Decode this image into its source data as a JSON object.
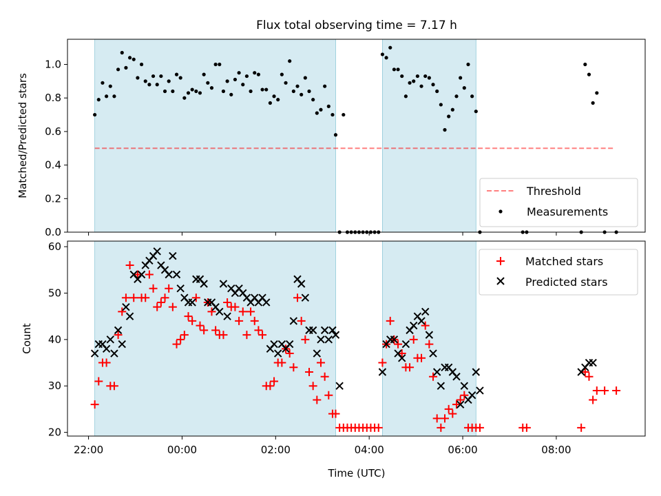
{
  "title": "Flux total observing time = 7.17 h",
  "colors": {
    "shade": "#add8e6",
    "threshold": "#ff0000",
    "matched": "#ff0000",
    "predicted": "#000000",
    "measurement": "#000000"
  },
  "chart_data": [
    {
      "type": "scatter",
      "panel": "top",
      "xlabel": "",
      "ylabel": "Matched/Predicted stars",
      "ylim": [
        0,
        1.15
      ],
      "xlim": [
        21.55,
        9.9
      ],
      "yticks": [
        "0.0",
        "0.2",
        "0.4",
        "0.6",
        "0.8",
        "1.0"
      ],
      "grid": false,
      "legend_position": "lower-right",
      "shaded_intervals": [
        [
          "22:08",
          "03:17"
        ],
        [
          "04:17",
          "06:17"
        ]
      ],
      "threshold": {
        "name": "Threshold",
        "y": 0.5,
        "x_from": "22:08",
        "x_to": "09:15"
      },
      "series": [
        {
          "name": "Measurements",
          "x": [
            "22:08",
            "22:13",
            "22:18",
            "22:23",
            "22:28",
            "22:33",
            "22:38",
            "22:43",
            "22:48",
            "22:53",
            "22:58",
            "23:03",
            "23:08",
            "23:13",
            "23:18",
            "23:23",
            "23:28",
            "23:33",
            "23:38",
            "23:43",
            "23:48",
            "23:53",
            "23:58",
            "00:03",
            "00:08",
            "00:13",
            "00:18",
            "00:23",
            "00:28",
            "00:33",
            "00:38",
            "00:43",
            "00:48",
            "00:53",
            "00:58",
            "01:03",
            "01:08",
            "01:13",
            "01:18",
            "01:23",
            "01:28",
            "01:33",
            "01:38",
            "01:43",
            "01:48",
            "01:53",
            "01:58",
            "02:03",
            "02:08",
            "02:13",
            "02:18",
            "02:23",
            "02:28",
            "02:33",
            "02:38",
            "02:43",
            "02:48",
            "02:53",
            "02:58",
            "03:03",
            "03:08",
            "03:13",
            "03:17",
            "03:22",
            "03:27",
            "03:32",
            "03:37",
            "03:42",
            "03:47",
            "03:52",
            "03:57",
            "04:02",
            "04:07",
            "04:12",
            "04:17",
            "04:22",
            "04:27",
            "04:32",
            "04:37",
            "04:42",
            "04:47",
            "04:52",
            "04:57",
            "05:02",
            "05:07",
            "05:12",
            "05:17",
            "05:22",
            "05:27",
            "05:32",
            "05:37",
            "05:42",
            "05:47",
            "05:52",
            "05:57",
            "06:02",
            "06:07",
            "06:12",
            "06:17",
            "06:22",
            "07:17",
            "07:22",
            "08:32",
            "08:37",
            "08:42",
            "08:47",
            "08:52",
            "09:02",
            "09:17"
          ],
          "values": [
            0.7,
            0.79,
            0.89,
            0.81,
            0.87,
            0.81,
            0.97,
            1.07,
            0.98,
            1.04,
            1.03,
            0.92,
            1.0,
            0.9,
            0.88,
            0.93,
            0.88,
            0.93,
            0.84,
            0.9,
            0.84,
            0.94,
            0.92,
            0.8,
            0.83,
            0.85,
            0.84,
            0.83,
            0.94,
            0.89,
            0.86,
            1.0,
            1.0,
            0.84,
            0.9,
            0.82,
            0.91,
            0.95,
            0.88,
            0.93,
            0.84,
            0.95,
            0.94,
            0.85,
            0.85,
            0.77,
            0.81,
            0.79,
            0.94,
            0.89,
            1.02,
            0.84,
            0.87,
            0.82,
            0.92,
            0.84,
            0.79,
            0.71,
            0.73,
            0.87,
            0.75,
            0.7,
            0.58,
            0.0,
            0.7,
            0.0,
            0.0,
            0.0,
            0.0,
            0.0,
            0.0,
            0.0,
            0.0,
            0.0,
            1.06,
            1.04,
            1.1,
            0.97,
            0.97,
            0.93,
            0.81,
            0.89,
            0.9,
            0.93,
            0.87,
            0.93,
            0.92,
            0.88,
            0.84,
            0.76,
            0.61,
            0.69,
            0.73,
            0.81,
            0.92,
            0.86,
            1.0,
            0.81,
            0.72,
            0.0,
            0.0,
            0.0,
            0.0,
            1.0,
            0.94,
            0.77,
            0.83,
            0.0,
            0.0
          ]
        }
      ]
    },
    {
      "type": "scatter",
      "panel": "bottom",
      "xlabel": "Time (UTC)",
      "ylabel": "Count",
      "ylim": [
        19.2,
        61.2
      ],
      "xlim": [
        21.55,
        9.9
      ],
      "yticks": [
        "20",
        "30",
        "40",
        "50",
        "60"
      ],
      "xticks": [
        "22:00",
        "00:00",
        "02:00",
        "04:00",
        "06:00",
        "08:00"
      ],
      "grid": false,
      "legend_position": "upper-right",
      "shaded_intervals": [
        [
          "22:08",
          "03:17"
        ],
        [
          "04:17",
          "06:17"
        ]
      ],
      "series": [
        {
          "name": "Matched stars",
          "x": [
            "22:08",
            "22:13",
            "22:18",
            "22:23",
            "22:28",
            "22:33",
            "22:38",
            "22:43",
            "22:48",
            "22:53",
            "22:58",
            "23:03",
            "23:08",
            "23:13",
            "23:18",
            "23:23",
            "23:28",
            "23:33",
            "23:38",
            "23:43",
            "23:48",
            "23:53",
            "23:58",
            "00:03",
            "00:08",
            "00:13",
            "00:18",
            "00:23",
            "00:28",
            "00:33",
            "00:38",
            "00:43",
            "00:48",
            "00:53",
            "00:58",
            "01:03",
            "01:08",
            "01:13",
            "01:18",
            "01:23",
            "01:28",
            "01:33",
            "01:38",
            "01:43",
            "01:48",
            "01:53",
            "01:58",
            "02:03",
            "02:08",
            "02:13",
            "02:18",
            "02:23",
            "02:28",
            "02:33",
            "02:38",
            "02:43",
            "02:48",
            "02:53",
            "02:58",
            "03:03",
            "03:08",
            "03:13",
            "03:17",
            "03:22",
            "03:27",
            "03:32",
            "03:37",
            "03:42",
            "03:47",
            "03:52",
            "03:57",
            "04:02",
            "04:07",
            "04:12",
            "04:17",
            "04:22",
            "04:27",
            "04:32",
            "04:37",
            "04:42",
            "04:47",
            "04:52",
            "04:57",
            "05:02",
            "05:07",
            "05:12",
            "05:17",
            "05:22",
            "05:27",
            "05:32",
            "05:37",
            "05:42",
            "05:47",
            "05:52",
            "05:57",
            "06:02",
            "06:07",
            "06:12",
            "06:17",
            "06:22",
            "07:17",
            "07:22",
            "08:32",
            "08:37",
            "08:42",
            "08:47",
            "08:52",
            "09:02",
            "09:17"
          ],
          "values": [
            26,
            31,
            35,
            35,
            30,
            30,
            41,
            46,
            49,
            56,
            49,
            54,
            49,
            49,
            54,
            51,
            47,
            48,
            49,
            51,
            47,
            39,
            40,
            41,
            45,
            44,
            49,
            43,
            42,
            48,
            46,
            42,
            41,
            41,
            48,
            47,
            47,
            44,
            46,
            41,
            46,
            44,
            42,
            41,
            30,
            30,
            31,
            35,
            35,
            38,
            37,
            34,
            49,
            44,
            40,
            33,
            30,
            27,
            35,
            32,
            28,
            24,
            24,
            21,
            21,
            21,
            21,
            21,
            21,
            21,
            21,
            21,
            21,
            21,
            35,
            39,
            44,
            40,
            39,
            37,
            34,
            34,
            40,
            36,
            36,
            43,
            39,
            32,
            23,
            21,
            23,
            25,
            24,
            26,
            27,
            28,
            21,
            21,
            21,
            21,
            21,
            21,
            21,
            33,
            32,
            27,
            29,
            29,
            29
          ]
        },
        {
          "name": "Predicted stars",
          "x": [
            "22:08",
            "22:13",
            "22:18",
            "22:23",
            "22:28",
            "22:33",
            "22:38",
            "22:43",
            "22:48",
            "22:53",
            "22:58",
            "23:03",
            "23:08",
            "23:13",
            "23:18",
            "23:23",
            "23:28",
            "23:33",
            "23:38",
            "23:43",
            "23:48",
            "23:53",
            "23:58",
            "00:03",
            "00:08",
            "00:13",
            "00:18",
            "00:23",
            "00:28",
            "00:33",
            "00:38",
            "00:43",
            "00:48",
            "00:53",
            "00:58",
            "01:03",
            "01:08",
            "01:13",
            "01:18",
            "01:23",
            "01:28",
            "01:33",
            "01:38",
            "01:43",
            "01:48",
            "01:53",
            "01:58",
            "02:03",
            "02:08",
            "02:13",
            "02:18",
            "02:23",
            "02:28",
            "02:33",
            "02:38",
            "02:43",
            "02:48",
            "02:53",
            "02:58",
            "03:03",
            "03:08",
            "03:13",
            "03:17",
            "03:22",
            "04:17",
            "04:22",
            "04:27",
            "04:32",
            "04:37",
            "04:42",
            "04:47",
            "04:52",
            "04:57",
            "05:02",
            "05:07",
            "05:12",
            "05:17",
            "05:22",
            "05:27",
            "05:32",
            "05:37",
            "05:42",
            "05:47",
            "05:52",
            "05:57",
            "06:02",
            "06:07",
            "06:12",
            "06:17",
            "06:22",
            "08:32",
            "08:37",
            "08:42",
            "08:47"
          ],
          "values": [
            37,
            39,
            39,
            38,
            40,
            37,
            42,
            39,
            47,
            45,
            54,
            53,
            54,
            56,
            57,
            58,
            59,
            56,
            55,
            54,
            58,
            54,
            51,
            49,
            48,
            48,
            53,
            53,
            52,
            48,
            48,
            47,
            46,
            52,
            45,
            51,
            50,
            51,
            50,
            49,
            48,
            49,
            48,
            49,
            48,
            38,
            39,
            37,
            39,
            38,
            39,
            44,
            53,
            52,
            49,
            42,
            42,
            37,
            40,
            42,
            40,
            42,
            41,
            30,
            33,
            39,
            40,
            40,
            37,
            36,
            39,
            42,
            43,
            45,
            44,
            46,
            41,
            37,
            33,
            30,
            34,
            34,
            33,
            32,
            26,
            30,
            27,
            28,
            33,
            29,
            33,
            34,
            35,
            35
          ]
        }
      ]
    }
  ]
}
